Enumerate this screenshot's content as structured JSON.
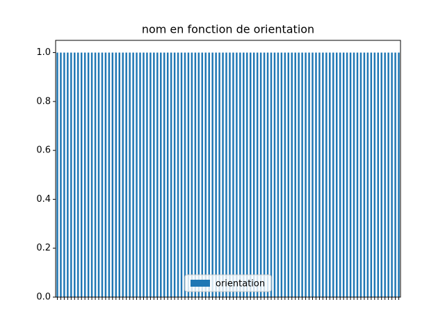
{
  "chart_data": {
    "type": "bar",
    "title": "nom en fonction de orientation",
    "categories": [
      null,
      null,
      null,
      null,
      null,
      null,
      null,
      null,
      null,
      null,
      null,
      null,
      null,
      null,
      null,
      null,
      null,
      null,
      null,
      null,
      null,
      null,
      null,
      null,
      null,
      null,
      null,
      null,
      null,
      null,
      null,
      null,
      null,
      null,
      null,
      null,
      null,
      null,
      null,
      null,
      null,
      null,
      null,
      null,
      null,
      null,
      null,
      null,
      null,
      null,
      null,
      null,
      null,
      null,
      null,
      null,
      null,
      null,
      null,
      null,
      null,
      null,
      null,
      null,
      null,
      null,
      null,
      null,
      null,
      null,
      null,
      null,
      null,
      null,
      null,
      null,
      null,
      null,
      null,
      null,
      null,
      null,
      null,
      null,
      null,
      null,
      null,
      null,
      null,
      null,
      null,
      null,
      null,
      null,
      null,
      null,
      null,
      null,
      null,
      null
    ],
    "series": [
      {
        "name": "orientation",
        "color": "#1f77b4",
        "values": [
          1,
          1,
          1,
          1,
          1,
          1,
          1,
          1,
          1,
          1,
          1,
          1,
          1,
          1,
          1,
          1,
          1,
          1,
          1,
          1,
          1,
          1,
          1,
          1,
          1,
          1,
          1,
          1,
          1,
          1,
          1,
          1,
          1,
          1,
          1,
          1,
          1,
          1,
          1,
          1,
          1,
          1,
          1,
          1,
          1,
          1,
          1,
          1,
          1,
          1,
          1,
          1,
          1,
          1,
          1,
          1,
          1,
          1,
          1,
          1,
          1,
          1,
          1,
          1,
          1,
          1,
          1,
          1,
          1,
          1,
          1,
          1,
          1,
          1,
          1,
          1,
          1,
          1,
          1,
          1,
          1,
          1,
          1,
          1,
          1,
          1,
          1,
          1,
          1,
          1,
          1,
          1,
          1,
          1,
          1,
          1,
          1,
          1,
          1,
          1
        ]
      }
    ],
    "ylim": [
      0,
      1.05
    ],
    "yticks": [
      {
        "value": 0,
        "label": "0.0"
      },
      0.2,
      0.4,
      0.6,
      0.8,
      {
        "value": 1,
        "label": "1.0"
      }
    ],
    "legend": "lower center"
  }
}
